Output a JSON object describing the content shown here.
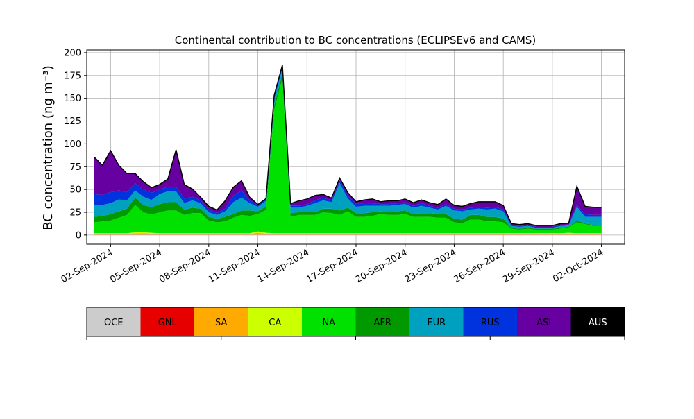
{
  "chart_data": {
    "type": "area",
    "stacked": true,
    "title": "Continental contribution to BC concentrations (ECLIPSEv6 and CAMS)",
    "ylabel": "BC concentration (ng m⁻³)",
    "xlabel": "",
    "ylim": [
      -10,
      203
    ],
    "xlim": [
      "2024-08-31T13:00",
      "2024-10-03T10:00"
    ],
    "grid": true,
    "yticks": [
      0,
      25,
      50,
      75,
      100,
      125,
      150,
      175,
      200
    ],
    "xticks": [
      "02-Sep-2024",
      "05-Sep-2024",
      "08-Sep-2024",
      "11-Sep-2024",
      "14-Sep-2024",
      "17-Sep-2024",
      "20-Sep-2024",
      "23-Sep-2024",
      "26-Sep-2024",
      "29-Sep-2024",
      "02-Oct-2024"
    ],
    "x": [
      "2024-09-01T00:00",
      "2024-09-01T12:00",
      "2024-09-02T00:00",
      "2024-09-02T12:00",
      "2024-09-03T00:00",
      "2024-09-03T12:00",
      "2024-09-04T00:00",
      "2024-09-04T12:00",
      "2024-09-05T00:00",
      "2024-09-05T12:00",
      "2024-09-06T00:00",
      "2024-09-06T12:00",
      "2024-09-07T00:00",
      "2024-09-07T12:00",
      "2024-09-08T00:00",
      "2024-09-08T12:00",
      "2024-09-09T00:00",
      "2024-09-09T12:00",
      "2024-09-10T00:00",
      "2024-09-10T12:00",
      "2024-09-11T00:00",
      "2024-09-11T12:00",
      "2024-09-12T00:00",
      "2024-09-12T12:00",
      "2024-09-13T00:00",
      "2024-09-13T12:00",
      "2024-09-14T00:00",
      "2024-09-14T12:00",
      "2024-09-15T00:00",
      "2024-09-15T12:00",
      "2024-09-16T00:00",
      "2024-09-16T12:00",
      "2024-09-17T00:00",
      "2024-09-17T12:00",
      "2024-09-18T00:00",
      "2024-09-18T12:00",
      "2024-09-19T00:00",
      "2024-09-19T12:00",
      "2024-09-20T00:00",
      "2024-09-20T12:00",
      "2024-09-21T00:00",
      "2024-09-21T12:00",
      "2024-09-22T00:00",
      "2024-09-22T12:00",
      "2024-09-23T00:00",
      "2024-09-23T12:00",
      "2024-09-24T00:00",
      "2024-09-24T12:00",
      "2024-09-25T00:00",
      "2024-09-25T12:00",
      "2024-09-26T00:00",
      "2024-09-26T12:00",
      "2024-09-27T00:00",
      "2024-09-27T12:00",
      "2024-09-28T00:00",
      "2024-09-28T12:00",
      "2024-09-29T00:00",
      "2024-09-29T12:00",
      "2024-09-30T00:00",
      "2024-09-30T12:00",
      "2024-10-01T00:00",
      "2024-10-01T12:00",
      "2024-10-02T00:00"
    ],
    "series": [
      {
        "name": "OCE",
        "color": "#cccccc",
        "values": [
          0.3,
          0.3,
          0.3,
          0.3,
          0.3,
          0.3,
          0.3,
          0.3,
          0.3,
          0.3,
          0.3,
          0.3,
          0.3,
          0.3,
          0.3,
          0.3,
          0.3,
          0.3,
          0.3,
          0.3,
          0.3,
          0.3,
          0.3,
          0.3,
          0.3,
          0.3,
          0.3,
          0.3,
          0.3,
          0.3,
          0.3,
          0.3,
          0.3,
          0.3,
          0.3,
          0.3,
          0.3,
          0.3,
          0.3,
          0.3,
          0.3,
          0.3,
          0.3,
          0.3,
          0.3,
          0.3,
          0.3,
          0.3,
          0.3,
          0.3,
          0.3,
          0.3,
          0.3,
          0.3,
          0.3,
          0.3,
          0.3,
          0.3,
          0.3,
          0.3,
          0.3,
          0.3,
          0.3
        ]
      },
      {
        "name": "GNL",
        "color": "#e60000",
        "values": [
          0.2,
          0.2,
          0.2,
          0.2,
          0.2,
          0.2,
          0.2,
          0.2,
          0.2,
          0.2,
          0.2,
          0.2,
          0.2,
          0.2,
          0.2,
          0.2,
          0.2,
          0.2,
          0.2,
          0.2,
          0.2,
          0.2,
          0.2,
          0.2,
          0.2,
          0.2,
          0.2,
          0.2,
          0.2,
          0.2,
          0.2,
          0.2,
          0.2,
          0.2,
          0.2,
          0.2,
          0.2,
          0.2,
          0.2,
          0.2,
          0.2,
          0.2,
          0.2,
          0.2,
          0.2,
          0.2,
          0.2,
          0.2,
          0.2,
          0.2,
          0.2,
          0.2,
          0.2,
          0.2,
          0.2,
          0.2,
          0.2,
          0.2,
          0.2,
          0.2,
          0.2,
          0.2,
          0.2
        ]
      },
      {
        "name": "SA",
        "color": "#ffaa00",
        "values": [
          0.5,
          0.5,
          0.5,
          0.5,
          0.5,
          1.5,
          1.5,
          1,
          0.5,
          0.5,
          0.5,
          0.5,
          0.5,
          0.5,
          0.5,
          0.5,
          0.5,
          0.5,
          0.5,
          0.5,
          2,
          1,
          0.5,
          0.5,
          0.5,
          0.5,
          0.5,
          0.5,
          0.5,
          0.5,
          0.5,
          0.5,
          0.5,
          0.5,
          0.5,
          0.5,
          0.5,
          0.5,
          0.5,
          0.5,
          0.5,
          0.5,
          0.5,
          0.5,
          0.5,
          0.5,
          0.5,
          0.5,
          0.5,
          0.5,
          0.5,
          0.5,
          0.5,
          0.5,
          0.5,
          0.5,
          0.5,
          0.5,
          0.5,
          0.5,
          0.5,
          0.5,
          0.5
        ]
      },
      {
        "name": "CA",
        "color": "#ccff00",
        "values": [
          1,
          1,
          1,
          1,
          1,
          1,
          1,
          1,
          1,
          1,
          1,
          1,
          1,
          1,
          1,
          1,
          1,
          1,
          1,
          1,
          1.5,
          1,
          1,
          1,
          1,
          1,
          1,
          1,
          1,
          1,
          1,
          1,
          1,
          1,
          1,
          1,
          1,
          1,
          1,
          1,
          1,
          1,
          1,
          1,
          1,
          1,
          1,
          1,
          1,
          1,
          1,
          1,
          1,
          1,
          1,
          1,
          1,
          1,
          1.5,
          1,
          1,
          1,
          1
        ]
      },
      {
        "name": "NA",
        "color": "#00e100",
        "values": [
          12,
          13,
          14,
          17,
          20,
          30,
          22,
          20,
          23,
          25,
          25,
          20,
          22,
          22,
          14,
          12,
          13,
          17,
          20,
          19,
          19,
          25,
          135,
          170,
          18,
          20,
          20,
          20,
          23,
          22,
          20,
          24,
          18,
          18,
          19,
          21,
          20,
          20,
          21,
          18,
          18,
          18,
          17,
          17,
          12,
          11,
          15,
          15,
          13,
          13,
          12,
          5,
          4,
          5,
          4,
          4,
          4,
          5,
          6,
          12,
          10,
          8,
          8
        ]
      },
      {
        "name": "AFR",
        "color": "#009900",
        "values": [
          6,
          6,
          7,
          7,
          7,
          8,
          8,
          8,
          9,
          9,
          9,
          6,
          6,
          5,
          4,
          4,
          5,
          4,
          5,
          6,
          3,
          4,
          5,
          5,
          4,
          3,
          3,
          3,
          4,
          5,
          5,
          4,
          4,
          4,
          4,
          3,
          3,
          4,
          4,
          3,
          4,
          4,
          4,
          4,
          4,
          4,
          5,
          5,
          5,
          5,
          4,
          1,
          1,
          1,
          1,
          1,
          1,
          1,
          1,
          2,
          1,
          1,
          1
        ]
      },
      {
        "name": "EUR",
        "color": "#00a0c0",
        "values": [
          13,
          12,
          12,
          13,
          9,
          8,
          9,
          8,
          11,
          12,
          12,
          7,
          8,
          6,
          5,
          4,
          6,
          13,
          14,
          8,
          5,
          6,
          7,
          6,
          6,
          5,
          7,
          10,
          9,
          7,
          30,
          10,
          7,
          8,
          7,
          6,
          7,
          7,
          7,
          7,
          8,
          6,
          5,
          9,
          9,
          9,
          6,
          7,
          8,
          9,
          8,
          2,
          2,
          2,
          1,
          1,
          1,
          2,
          1,
          15,
          7,
          9,
          9
        ]
      },
      {
        "name": "RUS",
        "color": "#0033dd",
        "values": [
          12,
          11,
          12,
          10,
          9,
          8,
          8,
          8,
          5,
          5,
          5,
          5,
          4,
          3,
          3,
          2,
          3,
          7,
          8,
          3,
          2,
          2,
          4,
          3,
          2,
          2,
          2,
          3,
          3,
          2,
          3,
          3,
          3,
          3,
          3,
          2,
          2,
          2,
          2,
          2,
          3,
          2,
          2,
          2,
          2,
          2,
          2,
          2,
          2,
          2,
          2,
          1,
          1,
          1,
          1,
          1,
          1,
          1,
          1,
          2,
          3,
          2,
          2
        ]
      },
      {
        "name": "ASI",
        "color": "#6600a0",
        "values": [
          40,
          32,
          45,
          27,
          20,
          10,
          8,
          5,
          5,
          8,
          40,
          15,
          8,
          3,
          3,
          3,
          8,
          9,
          10,
          3,
          0,
          0,
          0,
          0,
          2,
          5,
          5,
          5,
          3,
          2,
          2,
          3,
          2,
          3,
          4,
          2,
          3,
          2,
          3,
          3,
          3,
          3,
          3,
          5,
          3,
          3,
          4,
          5,
          6,
          5,
          4,
          1,
          1,
          1,
          1,
          1,
          1,
          1,
          1,
          20,
          8,
          8,
          8
        ]
      },
      {
        "name": "AUS",
        "color": "#000000",
        "values": [
          0.5,
          0.5,
          0.5,
          0.5,
          0.5,
          0.5,
          0.5,
          0.5,
          0.5,
          0.5,
          0.5,
          0.5,
          0.5,
          0.5,
          0.5,
          0.5,
          0.5,
          0.5,
          0.5,
          0.5,
          0.5,
          0.5,
          0.5,
          0.5,
          0.5,
          0.5,
          0.5,
          0.5,
          0.5,
          0.5,
          0.5,
          0.5,
          0.5,
          0.5,
          0.5,
          0.5,
          0.5,
          0.5,
          0.5,
          0.5,
          0.5,
          0.5,
          0.5,
          0.5,
          0.5,
          0.5,
          0.5,
          0.5,
          0.5,
          0.5,
          0.5,
          0.5,
          0.5,
          0.5,
          0.5,
          0.5,
          0.5,
          0.5,
          0.5,
          0.5,
          0.5,
          0.5,
          0.5
        ]
      }
    ],
    "colorbar": {
      "labels": [
        "OCE",
        "GNL",
        "SA",
        "CA",
        "NA",
        "AFR",
        "EUR",
        "RUS",
        "ASI",
        "AUS"
      ],
      "colors": [
        "#cccccc",
        "#e60000",
        "#ffaa00",
        "#ccff00",
        "#00e100",
        "#009900",
        "#00a0c0",
        "#0033dd",
        "#6600a0",
        "#000000"
      ],
      "text_colors": [
        "#000000",
        "#000000",
        "#000000",
        "#000000",
        "#000000",
        "#000000",
        "#000000",
        "#000000",
        "#000000",
        "#ffffff"
      ]
    }
  }
}
